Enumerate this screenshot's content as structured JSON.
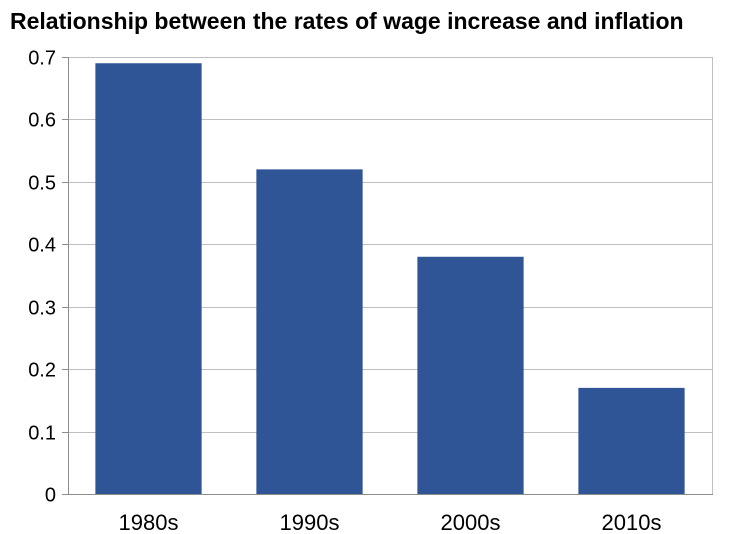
{
  "chart_data": {
    "type": "bar",
    "title": "Relationship between the rates of wage increase and inflation",
    "categories": [
      "1980s",
      "1990s",
      "2000s",
      "2010s"
    ],
    "values": [
      0.69,
      0.52,
      0.38,
      0.17
    ],
    "y_ticks": [
      "0",
      "0.1",
      "0.2",
      "0.3",
      "0.4",
      "0.5",
      "0.6",
      "0.7"
    ],
    "ylim": [
      0,
      0.7
    ],
    "grid": true,
    "legend": "none",
    "bar_color": "#2f5597",
    "grid_color": "#bfbfbf"
  }
}
